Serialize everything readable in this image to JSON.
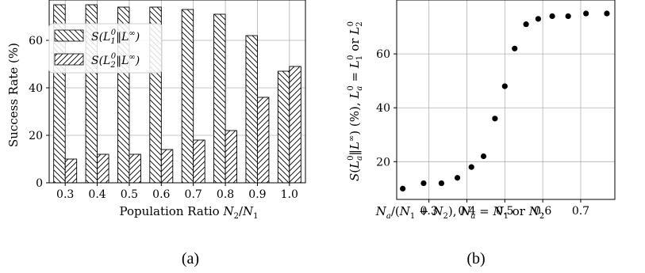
{
  "chart_data": [
    {
      "panel": "a",
      "type": "bar",
      "caption": "(a)",
      "xlabel": "Population Ratio N2/N1",
      "ylabel": "Success Rate (%)",
      "categories": [
        "0.3",
        "0.4",
        "0.5",
        "0.6",
        "0.7",
        "0.8",
        "0.9",
        "1.0"
      ],
      "series": [
        {
          "name": "S(L1^0||L^∞)",
          "values": [
            75,
            75,
            74,
            74,
            73,
            71,
            62,
            47
          ]
        },
        {
          "name": "S(L2^0||L^∞)",
          "values": [
            10,
            12,
            12,
            14,
            18,
            22,
            36,
            49
          ]
        }
      ],
      "ylim": [
        0,
        77
      ],
      "yticks": [
        0,
        20,
        40,
        60
      ],
      "grid": true,
      "legend": "top-left"
    },
    {
      "panel": "b",
      "type": "scatter",
      "caption": "(b)",
      "xlabel": "Na/(N1 + N2), Na = N1 or N2",
      "ylabel": "S(La^0||L^∞) (%), La^0 = L1^0 or L2^0",
      "x": [
        0.231,
        0.286,
        0.333,
        0.375,
        0.412,
        0.444,
        0.474,
        0.5,
        0.526,
        0.556,
        0.588,
        0.625,
        0.667,
        0.714,
        0.769
      ],
      "y": [
        10,
        12,
        12,
        14,
        18,
        22,
        36,
        48,
        62,
        71,
        73,
        74,
        74,
        75,
        75
      ],
      "xlim": [
        0.215,
        0.79
      ],
      "ylim": [
        6,
        80
      ],
      "xticks": [
        "0.3",
        "0.4",
        "0.5",
        "0.6",
        "0.7"
      ],
      "yticks": [
        20,
        40,
        60
      ],
      "grid": true
    }
  ]
}
